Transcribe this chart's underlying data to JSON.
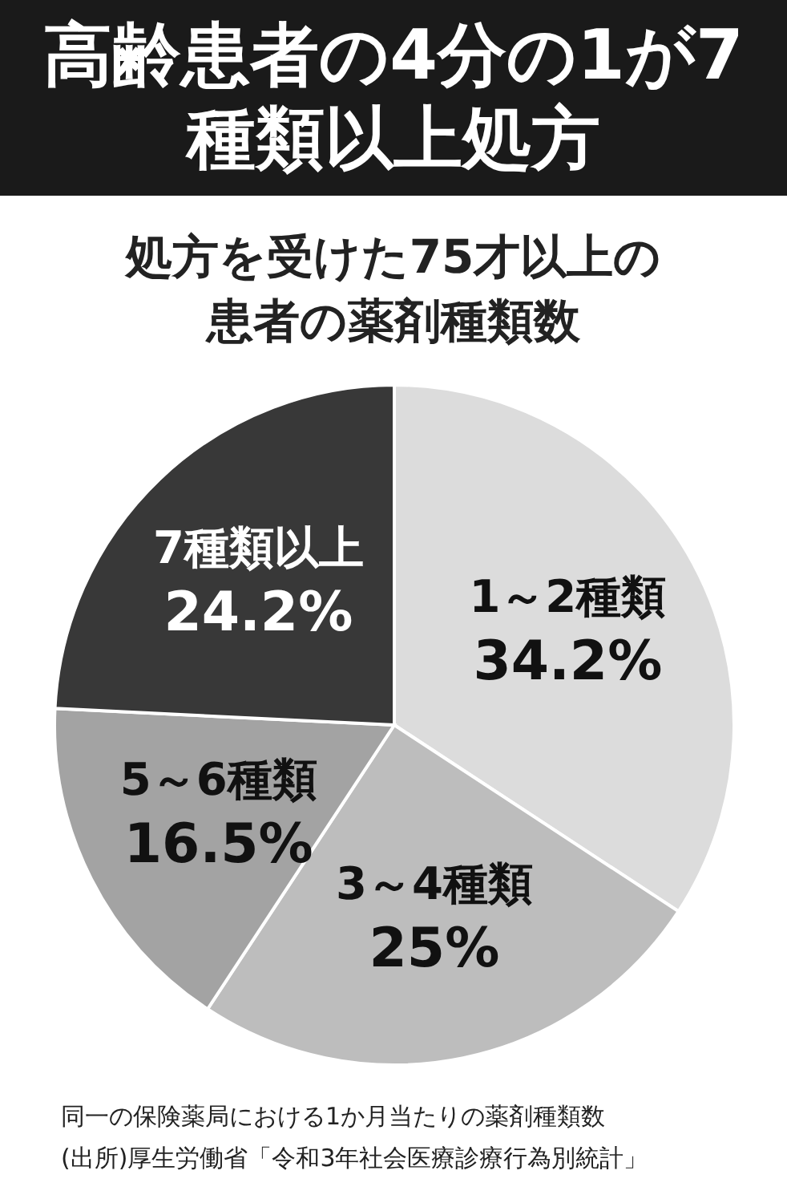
{
  "chart_data": {
    "type": "pie",
    "title": "高齢患者の4分の1が7種類以上処方",
    "subtitle": "処方を受けた75才以上の患者の薬剤種類数",
    "categories": [
      "1～2種類",
      "3～4種類",
      "5～6種類",
      "7種類以上"
    ],
    "values": [
      34.2,
      25,
      16.5,
      24.2
    ],
    "value_labels": [
      "34.2%",
      "25%",
      "16.5%",
      "24.2%"
    ],
    "colors": [
      "#dcdcdc",
      "#bdbdbd",
      "#a3a3a3",
      "#383838"
    ],
    "annotations": [
      "同一の保険薬局における1か月当たりの薬剤種類数",
      "(出所)厚生労働省「令和3年社会医療診療行為別統計」"
    ]
  }
}
